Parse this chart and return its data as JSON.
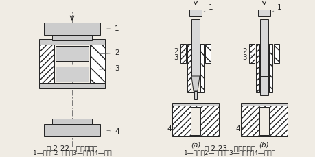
{
  "bg_color": "#f0ece4",
  "line_color": "#222222",
  "fig22_title": "图 2-22   铜套的墩粗",
  "fig22_caption": "1—上模；2  铜套；3—轴承；4—下模",
  "fig23_title": "图 2-23   扩张活塞销",
  "fig23_caption": "1—冲头；2—活塞销；3—胀缩套；4—模具座",
  "label_a": "(a)",
  "label_b": "(b)",
  "text_fontsize": 7.0,
  "caption_fontsize": 6.5,
  "label_fontsize": 7.5,
  "title_fontsize": 7.5
}
